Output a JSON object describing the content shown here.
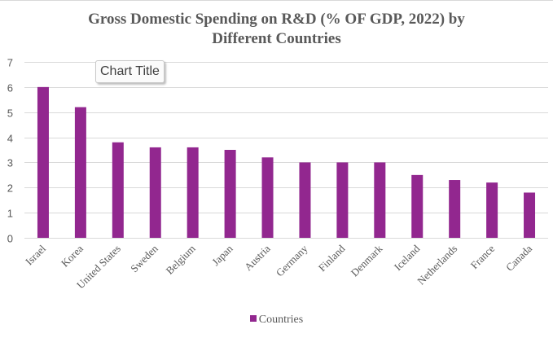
{
  "chart_data": {
    "type": "bar",
    "title": "Gross Domestic Spending on R&D (% OF GDP, 2022) by Different Countries",
    "title_lines": [
      "Gross Domestic Spending on R&D (% OF GDP, 2022) by",
      "Different Countries"
    ],
    "xlabel": "",
    "ylabel": "",
    "categories": [
      "Israel",
      "Korea",
      "United States",
      "Sweden",
      "Belgium",
      "Japan",
      "Austria",
      "Germany",
      "Finland",
      "Denmark",
      "Iceland",
      "Netherlands",
      "France",
      "Canada"
    ],
    "series": [
      {
        "name": "Countries",
        "color": "#92278F",
        "values": [
          6.0,
          5.2,
          3.8,
          3.6,
          3.6,
          3.5,
          3.2,
          3.0,
          3.0,
          3.0,
          2.5,
          2.3,
          2.2,
          1.8
        ]
      }
    ],
    "ylim": [
      0,
      7
    ],
    "yticks": [
      0,
      1,
      2,
      3,
      4,
      5,
      6,
      7
    ],
    "grid": true,
    "legend": "bottom",
    "x_label_rotation": "diagonal"
  },
  "tooltip": {
    "text": "Chart Title"
  },
  "colors": {
    "bar": "#92278F",
    "text": "#595959",
    "grid": "#d9d9d9"
  }
}
